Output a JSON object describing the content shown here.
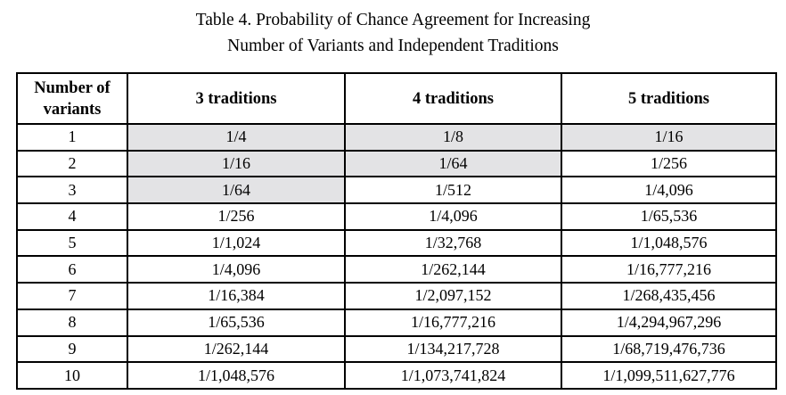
{
  "caption": {
    "line1": "Table 4. Probability of Chance Agreement for Increasing",
    "line2": "Number of Variants and Independent Traditions"
  },
  "colors": {
    "shaded_cell": "#e3e3e5",
    "border": "#000000",
    "text": "#000000",
    "background": "#ffffff"
  },
  "table": {
    "headers": {
      "col1": "Number of variants",
      "col2": "3 traditions",
      "col3": "4 traditions",
      "col4": "5 traditions"
    },
    "rows": [
      {
        "variants": "1",
        "cells": [
          {
            "text": "1/4",
            "shaded": true
          },
          {
            "text": "1/8",
            "shaded": true
          },
          {
            "text": "1/16",
            "shaded": true
          }
        ]
      },
      {
        "variants": "2",
        "cells": [
          {
            "text": "1/16",
            "shaded": true
          },
          {
            "text": "1/64",
            "shaded": true
          },
          {
            "text": "1/256",
            "shaded": false
          }
        ]
      },
      {
        "variants": "3",
        "cells": [
          {
            "text": "1/64",
            "shaded": true
          },
          {
            "text": "1/512",
            "shaded": false
          },
          {
            "text": "1/4,096",
            "shaded": false
          }
        ]
      },
      {
        "variants": "4",
        "cells": [
          {
            "text": "1/256",
            "shaded": false
          },
          {
            "text": "1/4,096",
            "shaded": false
          },
          {
            "text": "1/65,536",
            "shaded": false
          }
        ]
      },
      {
        "variants": "5",
        "cells": [
          {
            "text": "1/1,024",
            "shaded": false
          },
          {
            "text": "1/32,768",
            "shaded": false
          },
          {
            "text": "1/1,048,576",
            "shaded": false
          }
        ]
      },
      {
        "variants": "6",
        "cells": [
          {
            "text": "1/4,096",
            "shaded": false
          },
          {
            "text": "1/262,144",
            "shaded": false
          },
          {
            "text": "1/16,777,216",
            "shaded": false
          }
        ]
      },
      {
        "variants": "7",
        "cells": [
          {
            "text": "1/16,384",
            "shaded": false
          },
          {
            "text": "1/2,097,152",
            "shaded": false
          },
          {
            "text": "1/268,435,456",
            "shaded": false
          }
        ]
      },
      {
        "variants": "8",
        "cells": [
          {
            "text": "1/65,536",
            "shaded": false
          },
          {
            "text": "1/16,777,216",
            "shaded": false
          },
          {
            "text": "1/4,294,967,296",
            "shaded": false
          }
        ]
      },
      {
        "variants": "9",
        "cells": [
          {
            "text": "1/262,144",
            "shaded": false
          },
          {
            "text": "1/134,217,728",
            "shaded": false
          },
          {
            "text": "1/68,719,476,736",
            "shaded": false
          }
        ]
      },
      {
        "variants": "10",
        "cells": [
          {
            "text": "1/1,048,576",
            "shaded": false
          },
          {
            "text": "1/1,073,741,824",
            "shaded": false
          },
          {
            "text": "1/1,099,511,627,776",
            "shaded": false
          }
        ]
      }
    ]
  },
  "chart_data": {
    "type": "table",
    "title": "Table 4. Probability of Chance Agreement for Increasing Number of Variants and Independent Traditions",
    "columns": [
      "Number of variants",
      "3 traditions",
      "4 traditions",
      "5 traditions"
    ],
    "rows": [
      [
        "1",
        "1/4",
        "1/8",
        "1/16"
      ],
      [
        "2",
        "1/16",
        "1/64",
        "1/256"
      ],
      [
        "3",
        "1/64",
        "1/512",
        "1/4,096"
      ],
      [
        "4",
        "1/256",
        "1/4,096",
        "1/65,536"
      ],
      [
        "5",
        "1/1,024",
        "1/32,768",
        "1/1,048,576"
      ],
      [
        "6",
        "1/4,096",
        "1/262,144",
        "1/16,777,216"
      ],
      [
        "7",
        "1/16,384",
        "1/2,097,152",
        "1/268,435,456"
      ],
      [
        "8",
        "1/65,536",
        "1/16,777,216",
        "1/4,294,967,296"
      ],
      [
        "9",
        "1/262,144",
        "1/134,217,728",
        "1/68,719,476,736"
      ],
      [
        "10",
        "1/1,048,576",
        "1/1,073,741,824",
        "1/1,099,511,627,776"
      ]
    ],
    "shaded_cells": [
      {
        "row": 1,
        "column": "3 traditions"
      },
      {
        "row": 1,
        "column": "4 traditions"
      },
      {
        "row": 1,
        "column": "5 traditions"
      },
      {
        "row": 2,
        "column": "3 traditions"
      },
      {
        "row": 2,
        "column": "4 traditions"
      },
      {
        "row": 3,
        "column": "3 traditions"
      }
    ]
  }
}
